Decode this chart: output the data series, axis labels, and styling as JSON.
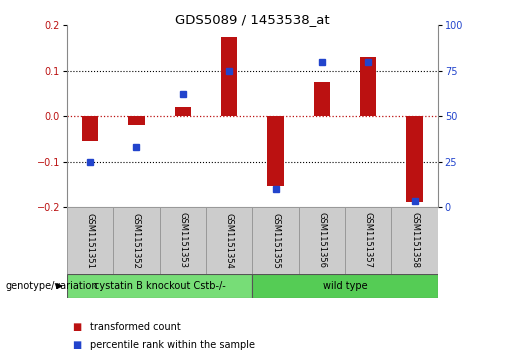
{
  "title": "GDS5089 / 1453538_at",
  "categories": [
    "GSM1151351",
    "GSM1151352",
    "GSM1151353",
    "GSM1151354",
    "GSM1151355",
    "GSM1151356",
    "GSM1151357",
    "GSM1151358"
  ],
  "red_values": [
    -0.055,
    -0.02,
    0.02,
    0.175,
    -0.155,
    0.075,
    0.13,
    -0.19
  ],
  "blue_pct": [
    25,
    33,
    62,
    75,
    10,
    80,
    80,
    3
  ],
  "ylim": [
    -0.2,
    0.2
  ],
  "yticks_left": [
    -0.2,
    -0.1,
    0.0,
    0.1,
    0.2
  ],
  "yticks_right": [
    0,
    25,
    50,
    75,
    100
  ],
  "red_color": "#bb1111",
  "blue_color": "#2244cc",
  "group1_label": "cystatin B knockout Cstb-/-",
  "group2_label": "wild type",
  "group1_color": "#77dd77",
  "group2_color": "#55cc55",
  "legend_red": "transformed count",
  "legend_blue": "percentile rank within the sample",
  "genotype_label": "genotype/variation",
  "bg_color": "#ffffff",
  "plot_bg": "#ffffff",
  "label_bg": "#cccccc",
  "bar_width": 0.35,
  "blue_marker_size": 5
}
